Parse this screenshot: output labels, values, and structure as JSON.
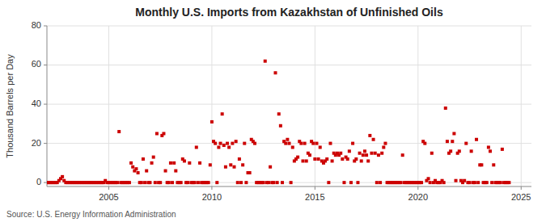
{
  "chart_data": {
    "type": "scatter",
    "title": "Monthly U.S. Imports from Kazakhstan of Unfinished Oils",
    "ylabel": "Thousand Barrels per Day",
    "annotation": "Source: U.S. Energy Information Administration",
    "color": "#cc0000",
    "marker": "square",
    "grid": true,
    "xlim": [
      2002.0,
      2025.5
    ],
    "ylim": [
      -2,
      80
    ],
    "xticks": [
      2005,
      2010,
      2015,
      2020,
      2025
    ],
    "yticks": [
      0,
      20,
      40,
      60,
      80
    ],
    "x": [
      2002.0,
      2002.083,
      2002.167,
      2002.25,
      2002.333,
      2002.417,
      2002.5,
      2002.583,
      2002.667,
      2002.75,
      2002.833,
      2002.917,
      2003.0,
      2003.083,
      2003.167,
      2003.25,
      2003.333,
      2003.417,
      2003.5,
      2003.583,
      2003.667,
      2003.75,
      2003.833,
      2003.917,
      2004.0,
      2004.083,
      2004.167,
      2004.25,
      2004.333,
      2004.417,
      2004.5,
      2004.583,
      2004.667,
      2004.75,
      2004.833,
      2004.917,
      2005.0,
      2005.083,
      2005.167,
      2005.25,
      2005.333,
      2005.417,
      2005.5,
      2005.583,
      2005.667,
      2005.75,
      2005.833,
      2005.917,
      2006.0,
      2006.083,
      2006.167,
      2006.25,
      2006.333,
      2006.417,
      2006.5,
      2006.583,
      2006.667,
      2006.75,
      2006.833,
      2006.917,
      2007.0,
      2007.083,
      2007.167,
      2007.25,
      2007.333,
      2007.417,
      2007.5,
      2007.583,
      2007.667,
      2007.75,
      2007.833,
      2007.917,
      2008.0,
      2008.083,
      2008.167,
      2008.25,
      2008.333,
      2008.417,
      2008.5,
      2008.583,
      2008.667,
      2008.75,
      2008.833,
      2008.917,
      2009.0,
      2009.083,
      2009.167,
      2009.25,
      2009.333,
      2009.417,
      2009.5,
      2009.583,
      2009.667,
      2009.75,
      2009.833,
      2009.917,
      2010.0,
      2010.083,
      2010.167,
      2010.25,
      2010.333,
      2010.417,
      2010.5,
      2010.583,
      2010.667,
      2010.75,
      2010.833,
      2010.917,
      2011.0,
      2011.083,
      2011.167,
      2011.25,
      2011.333,
      2011.417,
      2011.5,
      2011.583,
      2011.667,
      2011.75,
      2011.833,
      2011.917,
      2012.0,
      2012.083,
      2012.167,
      2012.25,
      2012.333,
      2012.417,
      2012.5,
      2012.583,
      2012.667,
      2012.75,
      2012.833,
      2012.917,
      2013.0,
      2013.083,
      2013.167,
      2013.25,
      2013.333,
      2013.417,
      2013.5,
      2013.583,
      2013.667,
      2013.75,
      2013.833,
      2013.917,
      2014.0,
      2014.083,
      2014.167,
      2014.25,
      2014.333,
      2014.417,
      2014.5,
      2014.583,
      2014.667,
      2014.75,
      2014.833,
      2014.917,
      2015.0,
      2015.083,
      2015.167,
      2015.25,
      2015.333,
      2015.417,
      2015.5,
      2015.583,
      2015.667,
      2015.75,
      2015.833,
      2015.917,
      2016.0,
      2016.083,
      2016.167,
      2016.25,
      2016.333,
      2016.417,
      2016.5,
      2016.583,
      2016.667,
      2016.75,
      2016.833,
      2016.917,
      2017.0,
      2017.083,
      2017.167,
      2017.25,
      2017.333,
      2017.417,
      2017.5,
      2017.583,
      2017.667,
      2017.75,
      2017.833,
      2017.917,
      2018.0,
      2018.083,
      2018.167,
      2018.25,
      2018.333,
      2018.417,
      2018.5,
      2018.583,
      2018.667,
      2018.75,
      2018.833,
      2018.917,
      2019.0,
      2019.083,
      2019.167,
      2019.25,
      2019.333,
      2019.417,
      2019.5,
      2019.583,
      2019.667,
      2019.75,
      2019.833,
      2019.917,
      2020.0,
      2020.083,
      2020.167,
      2020.25,
      2020.333,
      2020.417,
      2020.5,
      2020.583,
      2020.667,
      2020.75,
      2020.833,
      2020.917,
      2021.0,
      2021.083,
      2021.167,
      2021.25,
      2021.333,
      2021.417,
      2021.5,
      2021.583,
      2021.667,
      2021.75,
      2021.833,
      2021.917,
      2022.0,
      2022.083,
      2022.167,
      2022.25,
      2022.333,
      2022.417,
      2022.5,
      2022.583,
      2022.667,
      2022.75,
      2022.833,
      2022.917,
      2023.0,
      2023.083,
      2023.167,
      2023.25,
      2023.333,
      2023.417,
      2023.5,
      2023.583,
      2023.667,
      2023.75,
      2023.833,
      2023.917,
      2024.0,
      2024.083,
      2024.167,
      2024.25,
      2024.333,
      2024.417
    ],
    "values": [
      0,
      0,
      0,
      0,
      0,
      0,
      0,
      1,
      2,
      3,
      1,
      0,
      0,
      0,
      0,
      0,
      0,
      0,
      0,
      0,
      0,
      0,
      0,
      0,
      0,
      0,
      0,
      0,
      0,
      0,
      0,
      0,
      0,
      0,
      1,
      0,
      0,
      0,
      0,
      0,
      0,
      0,
      26,
      0,
      0,
      0,
      0,
      0,
      0,
      10,
      8,
      6,
      7,
      5,
      0,
      0,
      12,
      0,
      6,
      0,
      0,
      10,
      13,
      0,
      25,
      0,
      0,
      24,
      25,
      6,
      0,
      0,
      10,
      0,
      10,
      6,
      0,
      0,
      0,
      12,
      11,
      0,
      0,
      10,
      0,
      0,
      0,
      18,
      0,
      10,
      0,
      0,
      0,
      0,
      0,
      9,
      31,
      21,
      20,
      0,
      18,
      20,
      35,
      19,
      8,
      20,
      18,
      9,
      20,
      8,
      21,
      0,
      12,
      0,
      9,
      20,
      0,
      5,
      5,
      22,
      21,
      20,
      0,
      0,
      0,
      0,
      0,
      62,
      0,
      0,
      8,
      0,
      0,
      56,
      0,
      35,
      29,
      0,
      21,
      20,
      22,
      20,
      0,
      18,
      11,
      12,
      13,
      21,
      20,
      11,
      20,
      11,
      15,
      14,
      21,
      20,
      12,
      20,
      12,
      18,
      11,
      10,
      11,
      12,
      0,
      20,
      11,
      15,
      14,
      15,
      14,
      15,
      12,
      0,
      13,
      12,
      16,
      0,
      20,
      11,
      12,
      0,
      15,
      11,
      14,
      16,
      14,
      11,
      24,
      15,
      22,
      15,
      0,
      14,
      0,
      15,
      18,
      20,
      0,
      0,
      0,
      0,
      0,
      0,
      0,
      0,
      0,
      14,
      0,
      0,
      0,
      0,
      0,
      0,
      0,
      0,
      0,
      0,
      0,
      21,
      20,
      1,
      2,
      0,
      15,
      0,
      1,
      0,
      0,
      0,
      1,
      0,
      38,
      21,
      15,
      16,
      21,
      25,
      1,
      15,
      16,
      1,
      0,
      1,
      20,
      0,
      0,
      16,
      0,
      0,
      22,
      0,
      9,
      9,
      0,
      0,
      0,
      18,
      16,
      0,
      9,
      0,
      0,
      0,
      0,
      17,
      0,
      0,
      0,
      0
    ]
  }
}
